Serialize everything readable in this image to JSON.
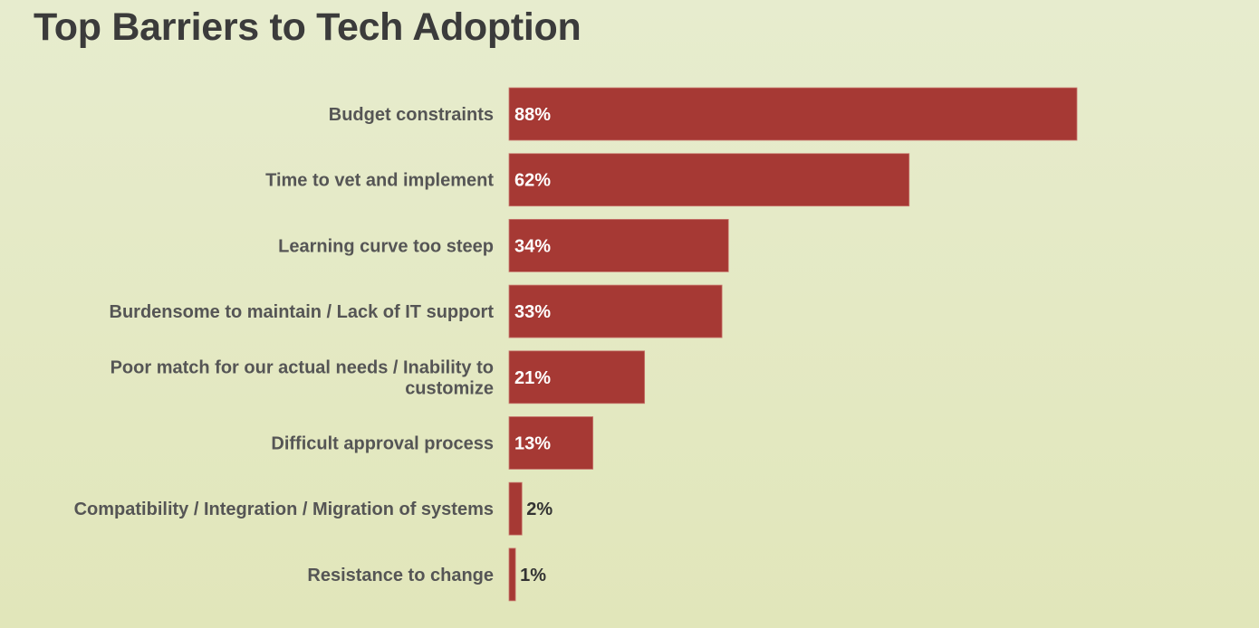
{
  "chart_data": {
    "type": "bar",
    "orientation": "horizontal",
    "title": "Top Barriers to Tech Adoption",
    "xlabel": "",
    "ylabel": "",
    "unit": "%",
    "xlim": [
      0,
      100
    ],
    "grid": false,
    "legend": "none",
    "bar_color": "#a63934",
    "categories": [
      [
        "Budget constraints"
      ],
      [
        "Time to vet and implement"
      ],
      [
        "Learning curve too steep"
      ],
      [
        "Burdensome to maintain / Lack of IT support"
      ],
      [
        "Poor match for our actual needs / Inability to",
        "customize"
      ],
      [
        "Difficult approval process"
      ],
      [
        "Compatibility / Integration / Migration of systems"
      ],
      [
        "Resistance to change"
      ]
    ],
    "values": [
      88,
      62,
      34,
      33,
      21,
      13,
      2,
      1
    ],
    "data_labels": [
      "88%",
      "62%",
      "34%",
      "33%",
      "21%",
      "13%",
      "2%",
      "1%"
    ]
  }
}
